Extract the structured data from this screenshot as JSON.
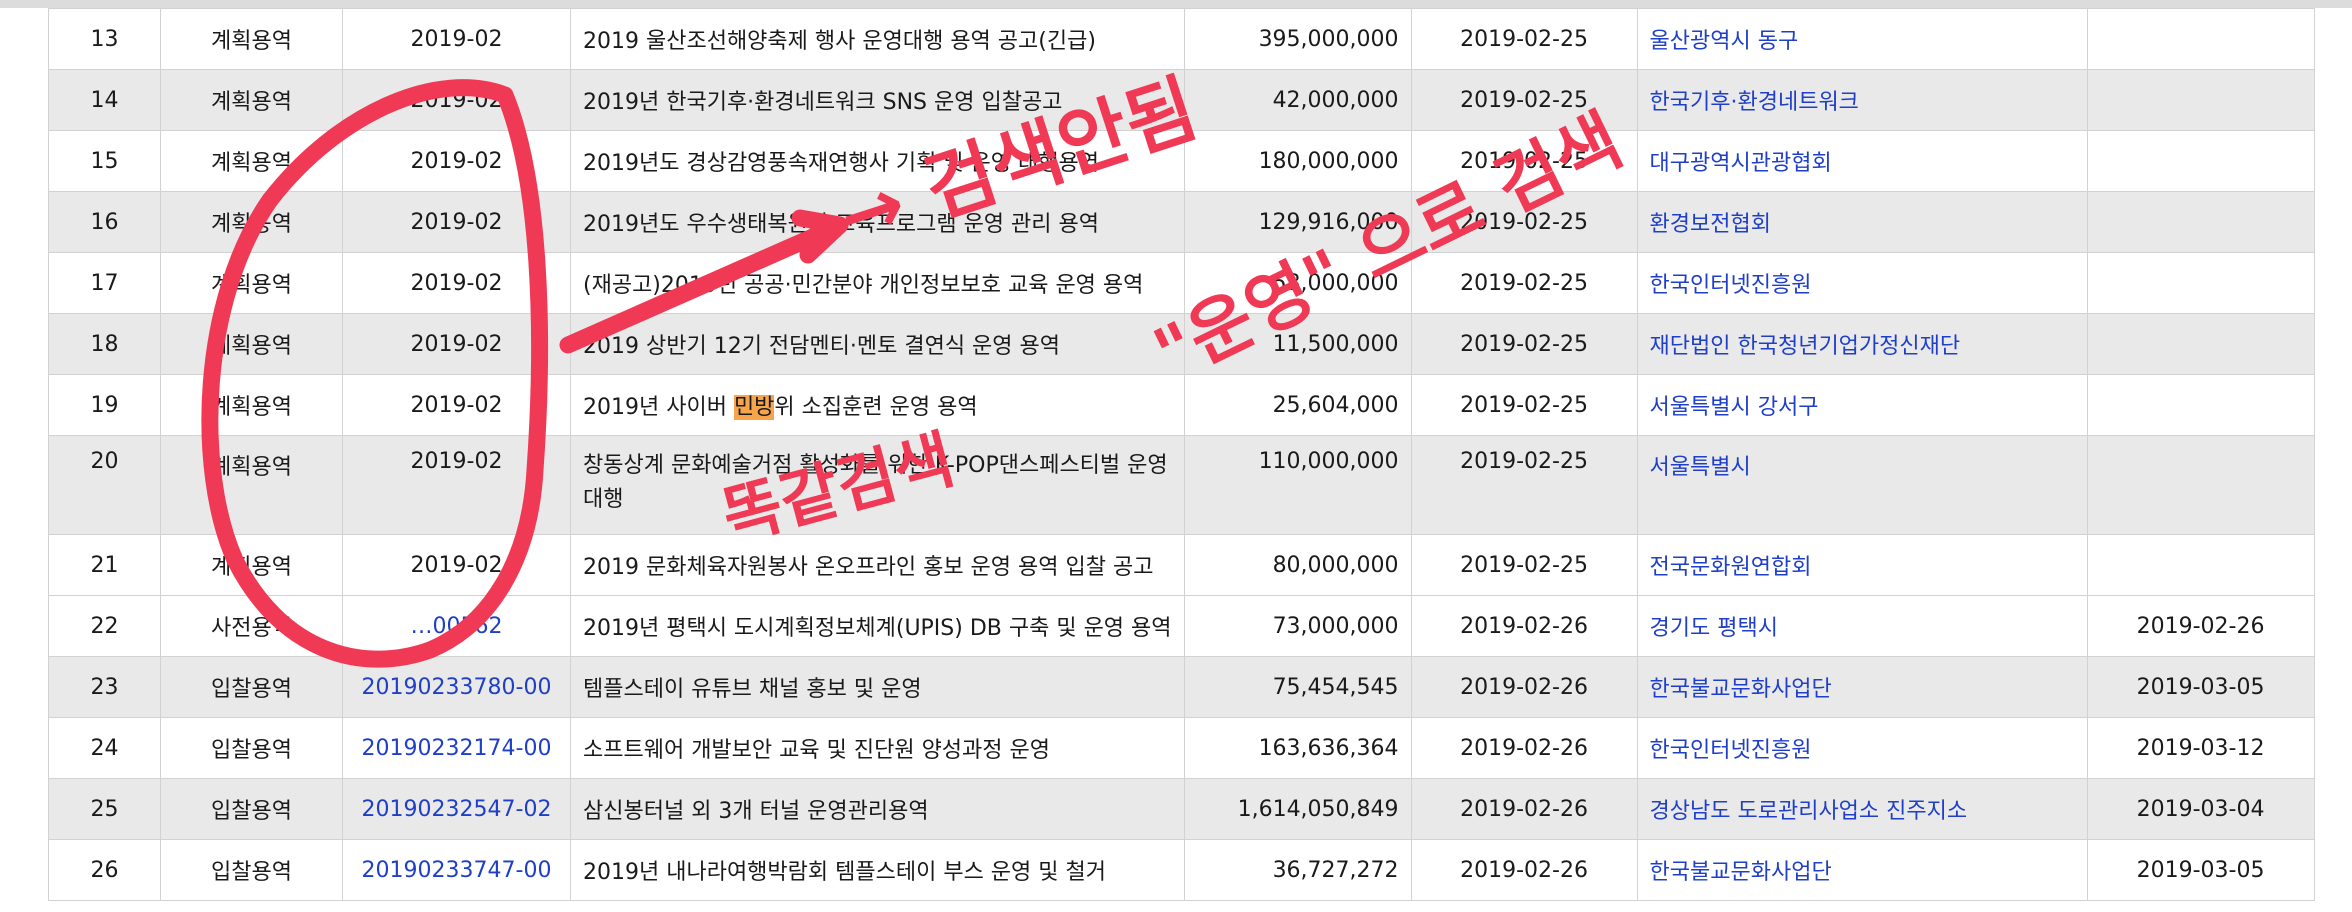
{
  "table": {
    "rows": [
      {
        "num": "13",
        "type": "계획용역",
        "id": "2019-02",
        "title": "2019 울산조선해양축제 행사 운영대행 용역 공고(긴급)",
        "amount": "395,000,000",
        "posted": "2019-02-25",
        "agency": "울산광역시 동구",
        "deadline": ""
      },
      {
        "num": "14",
        "type": "계획용역",
        "id": "2019-02",
        "title": "2019년 한국기후·환경네트워크 SNS 운영 입찰공고",
        "amount": "42,000,000",
        "posted": "2019-02-25",
        "agency": "한국기후·환경네트워크",
        "deadline": ""
      },
      {
        "num": "15",
        "type": "계획용역",
        "id": "2019-02",
        "title": "2019년도 경상감영풍속재연행사 기획 및 운영 대행용역",
        "amount": "180,000,000",
        "posted": "2019-02-25",
        "agency": "대구광역시관광협회",
        "deadline": ""
      },
      {
        "num": "16",
        "type": "계획용역",
        "id": "2019-02",
        "title": "2019년도 우수생태복원지 교육프로그램 운영 관리 용역",
        "amount": "129,916,000",
        "posted": "2019-02-25",
        "agency": "환경보전협회",
        "deadline": ""
      },
      {
        "num": "17",
        "type": "계획용역",
        "id": "2019-02",
        "title": "(재공고)2019년 공공·민간분야 개인정보보호 교육 운영 용역",
        "amount": "58,000,000",
        "posted": "2019-02-25",
        "agency": "한국인터넷진흥원",
        "deadline": ""
      },
      {
        "num": "18",
        "type": "계획용역",
        "id": "2019-02",
        "title": "2019 상반기 12기 전담멘티·멘토 결연식 운영 용역",
        "amount": "11,500,000",
        "posted": "2019-02-25",
        "agency": "재단법인 한국청년기업가정신재단",
        "deadline": ""
      },
      {
        "num": "19",
        "type": "계획용역",
        "id": "2019-02",
        "title_before": "2019년 사이버 ",
        "title_highlight": "민방",
        "title_after": "위 소집훈련 운영 용역",
        "amount": "25,604,000",
        "posted": "2019-02-25",
        "agency": "서울특별시 강서구",
        "deadline": ""
      },
      {
        "num": "20",
        "type": "계획용역",
        "id": "2019-02",
        "title": "창동상계 문화예술거점 활성화를 위한 K-POP댄스페스티벌 운영 대행",
        "amount": "110,000,000",
        "posted": "2019-02-25",
        "agency": "서울특별시",
        "deadline": ""
      },
      {
        "num": "21",
        "type": "계획용역",
        "id": "2019-02",
        "title": "2019 문화체육자원봉사 온오프라인 홍보 운영 용역 입찰 공고",
        "amount": "80,000,000",
        "posted": "2019-02-25",
        "agency": "전국문화원연합회",
        "deadline": ""
      },
      {
        "num": "22",
        "type": "사전용역",
        "id": "…00562",
        "title": "2019년 평택시 도시계획정보체계(UPIS) DB 구축 및 운영 용역",
        "amount": "73,000,000",
        "posted": "2019-02-26",
        "agency": "경기도 평택시",
        "deadline": "2019-02-26"
      },
      {
        "num": "23",
        "type": "입찰용역",
        "id": "20190233780-00",
        "title": "템플스테이 유튜브 채널 홍보 및 운영",
        "amount": "75,454,545",
        "posted": "2019-02-26",
        "agency": "한국불교문화사업단",
        "deadline": "2019-03-05"
      },
      {
        "num": "24",
        "type": "입찰용역",
        "id": "20190232174-00",
        "title": "소프트웨어 개발보안 교육 및 진단원 양성과정 운영",
        "amount": "163,636,364",
        "posted": "2019-02-26",
        "agency": "한국인터넷진흥원",
        "deadline": "2019-03-12"
      },
      {
        "num": "25",
        "type": "입찰용역",
        "id": "20190232547-02",
        "title": "삼신봉터널 외 3개 터널 운영관리용역",
        "amount": "1,614,050,849",
        "posted": "2019-02-26",
        "agency": "경상남도 도로관리사업소 진주지소",
        "deadline": "2019-03-04"
      },
      {
        "num": "26",
        "type": "입찰용역",
        "id": "20190233747-00",
        "title": "2019년 내나라여행박람회 템플스테이 부스 운영 및 철거",
        "amount": "36,727,272",
        "posted": "2019-02-26",
        "agency": "한국불교문화사업단",
        "deadline": "2019-03-05"
      }
    ]
  },
  "annotations": {
    "ink_color": "#f03a55",
    "note_1": "→ 검색안됨",
    "note_2": "\"운영\" 으로 검색",
    "note_3": "똑같검색"
  }
}
